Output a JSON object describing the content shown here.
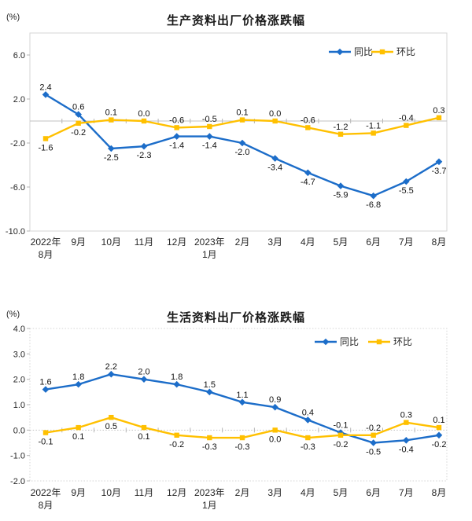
{
  "page": {
    "background": "#ffffff"
  },
  "colors": {
    "yoy_blue": "#1C6DC9",
    "mom_gold": "#FFC000",
    "plot_border": "#d4d4d4",
    "zero_line": "#c2c2c2",
    "tick_mark": "#b5b5b5",
    "axis_text": "#262626",
    "label_text": "#111111"
  },
  "chart_data": [
    {
      "type": "line",
      "title": "生产资料出厂价格涨跌幅",
      "unit": "(%)",
      "categories": [
        "2022年\n8月",
        "9月",
        "10月",
        "11月",
        "12月",
        "2023年\n1月",
        "2月",
        "3月",
        "4月",
        "5月",
        "6月",
        "7月",
        "8月"
      ],
      "ylim": [
        -10,
        8
      ],
      "yticks": [
        6,
        2,
        -2,
        -6,
        -10
      ],
      "grid": "zero-line-only",
      "legend_position": "top-right-inside",
      "border_style": "solid",
      "series": [
        {
          "name": "同比",
          "color": "#1C6DC9",
          "marker": "diamond",
          "values": [
            2.4,
            0.6,
            -2.5,
            -2.3,
            -1.4,
            -1.4,
            -2.0,
            -3.4,
            -4.7,
            -5.9,
            -6.8,
            -5.5,
            -3.7
          ],
          "label_side": [
            "a",
            "a",
            "b",
            "b",
            "b",
            "b",
            "b",
            "b",
            "b",
            "b",
            "b",
            "b",
            "b"
          ]
        },
        {
          "name": "环比",
          "color": "#FFC000",
          "marker": "square",
          "values": [
            -1.6,
            -0.2,
            0.1,
            0.0,
            -0.6,
            -0.5,
            0.1,
            0.0,
            -0.6,
            -1.2,
            -1.1,
            -0.4,
            0.3
          ],
          "label_side": [
            "b",
            "b",
            "a",
            "a",
            "a",
            "a",
            "a",
            "a",
            "a",
            "a",
            "a",
            "a",
            "a"
          ]
        }
      ]
    },
    {
      "type": "line",
      "title": "生活资料出厂价格涨跌幅",
      "unit": "(%)",
      "categories": [
        "2022年\n8月",
        "9月",
        "10月",
        "11月",
        "12月",
        "2023年\n1月",
        "2月",
        "3月",
        "4月",
        "5月",
        "6月",
        "7月",
        "8月"
      ],
      "ylim": [
        -2,
        4
      ],
      "yticks": [
        4,
        3,
        2,
        1,
        0,
        -1,
        -2
      ],
      "grid": "zero-line-only",
      "legend_position": "top-right-inside",
      "border_style": "dotted",
      "series": [
        {
          "name": "同比",
          "color": "#1C6DC9",
          "marker": "diamond",
          "values": [
            1.6,
            1.8,
            2.2,
            2.0,
            1.8,
            1.5,
            1.1,
            0.9,
            0.4,
            -0.1,
            -0.5,
            -0.4,
            -0.2
          ],
          "label_side": [
            "a",
            "a",
            "a",
            "a",
            "a",
            "a",
            "a",
            "a",
            "a",
            "a",
            "b",
            "b",
            "b"
          ]
        },
        {
          "name": "环比",
          "color": "#FFC000",
          "marker": "square",
          "values": [
            -0.1,
            0.1,
            0.5,
            0.1,
            -0.2,
            -0.3,
            -0.3,
            0.0,
            -0.3,
            -0.2,
            -0.2,
            0.3,
            0.1
          ],
          "label_side": [
            "b",
            "b",
            "b",
            "b",
            "b",
            "b",
            "b",
            "b",
            "b",
            "b",
            "a",
            "a",
            "a"
          ]
        }
      ]
    }
  ]
}
